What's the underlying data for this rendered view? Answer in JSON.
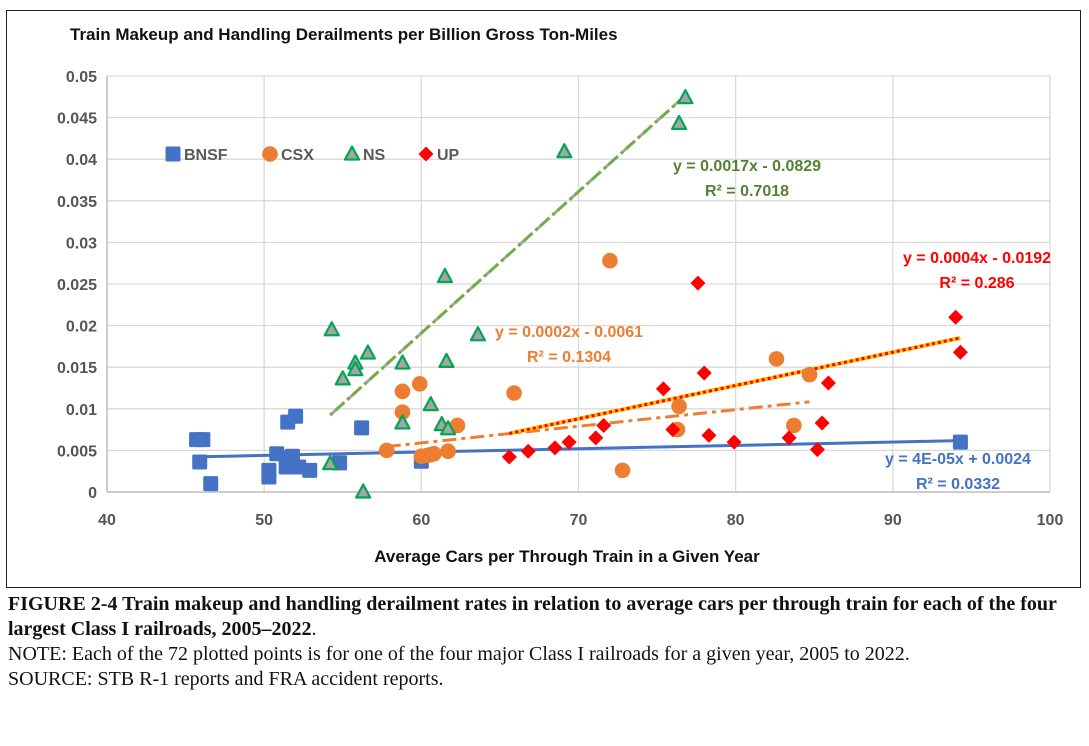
{
  "chart_data": {
    "type": "scatter",
    "title": "Train Makeup and Handling Derailments per Billion Gross Ton-Miles",
    "xlabel": "Average Cars per Through Train in a Given Year",
    "ylabel": "",
    "xlim": [
      40,
      100
    ],
    "ylim": [
      0,
      0.05
    ],
    "xticks": [
      40,
      50,
      60,
      70,
      80,
      90,
      100
    ],
    "xtick_labels": [
      "40",
      "50",
      "60",
      "70",
      "80",
      "90",
      "100"
    ],
    "yticks": [
      0,
      0.005,
      0.01,
      0.015,
      0.02,
      0.025,
      0.03,
      0.035,
      0.04,
      0.045,
      0.05
    ],
    "ytick_labels": [
      "0",
      "0.005",
      "0.01",
      "0.015",
      "0.02",
      "0.025",
      "0.03",
      "0.035",
      "0.04",
      "0.045",
      "0.05"
    ],
    "grid": true,
    "legend_position": "top-left",
    "series": [
      {
        "name": "BNSF",
        "marker": "square",
        "color": "#4472C4",
        "points": [
          [
            45.7,
            0.0063
          ],
          [
            46.1,
            0.0063
          ],
          [
            45.9,
            0.0036
          ],
          [
            46.6,
            0.001
          ],
          [
            50.3,
            0.0026
          ],
          [
            50.3,
            0.0018
          ],
          [
            50.8,
            0.0046
          ],
          [
            51.5,
            0.0041
          ],
          [
            51.4,
            0.003
          ],
          [
            52.2,
            0.003
          ],
          [
            52.9,
            0.0026
          ],
          [
            51.5,
            0.0084
          ],
          [
            52.0,
            0.0091
          ],
          [
            54.8,
            0.0035
          ],
          [
            56.2,
            0.0077
          ],
          [
            60.0,
            0.0037
          ],
          [
            94.3,
            0.006
          ],
          [
            51.8,
            0.0043
          ]
        ],
        "trendline": {
          "style": "solid",
          "color": "#4472C4",
          "x_range": [
            45.7,
            94.3
          ],
          "equation": "y = 4E-05x + 0.0024",
          "r2": "R² = 0.0332",
          "slope": 4e-05,
          "intercept": 0.0024
        }
      },
      {
        "name": "CSX",
        "marker": "circle",
        "color": "#ED7D31",
        "points": [
          [
            57.8,
            0.005
          ],
          [
            58.8,
            0.0121
          ],
          [
            58.8,
            0.0096
          ],
          [
            59.9,
            0.013
          ],
          [
            60.0,
            0.0043
          ],
          [
            60.4,
            0.0044
          ],
          [
            60.8,
            0.0046
          ],
          [
            61.7,
            0.0049
          ],
          [
            62.3,
            0.008
          ],
          [
            65.9,
            0.0119
          ],
          [
            72.0,
            0.0278
          ],
          [
            72.8,
            0.0026
          ],
          [
            76.3,
            0.0075
          ],
          [
            76.4,
            0.0103
          ],
          [
            82.6,
            0.016
          ],
          [
            83.7,
            0.008
          ],
          [
            84.7,
            0.0141
          ],
          [
            60.6,
            0.0045
          ]
        ],
        "trendline": {
          "style": "dash-dot",
          "color": "#ED7D31",
          "x_range": [
            57.8,
            84.7
          ],
          "equation": "y = 0.0002x - 0.0061",
          "r2": "R² = 0.1304",
          "slope": 0.0002,
          "intercept": -0.0061
        }
      },
      {
        "name": "NS",
        "marker": "triangle",
        "color": "#00A651",
        "fill": "#A5A5A5",
        "points": [
          [
            54.2,
            0.0034
          ],
          [
            54.3,
            0.0195
          ],
          [
            55.0,
            0.0136
          ],
          [
            55.8,
            0.0155
          ],
          [
            55.8,
            0.0147
          ],
          [
            56.3,
            0.0
          ],
          [
            56.6,
            0.0167
          ],
          [
            58.8,
            0.0155
          ],
          [
            58.8,
            0.0083
          ],
          [
            60.6,
            0.0105
          ],
          [
            61.3,
            0.0081
          ],
          [
            61.5,
            0.0259
          ],
          [
            61.6,
            0.0157
          ],
          [
            61.7,
            0.0076
          ],
          [
            63.6,
            0.0189
          ],
          [
            69.1,
            0.0409
          ],
          [
            76.4,
            0.0443
          ],
          [
            76.8,
            0.0474
          ]
        ],
        "trendline": {
          "style": "dash-dot",
          "color": "#70AD47",
          "x_range": [
            54.2,
            76.8
          ],
          "equation": "y = 0.0017x - 0.0829",
          "r2": "R² = 0.7018",
          "slope": 0.0017,
          "intercept": -0.0829
        }
      },
      {
        "name": "UP",
        "marker": "diamond",
        "color": "#FF0000",
        "points": [
          [
            65.6,
            0.0042
          ],
          [
            66.8,
            0.0049
          ],
          [
            68.5,
            0.0053
          ],
          [
            69.4,
            0.006
          ],
          [
            71.1,
            0.0065
          ],
          [
            71.6,
            0.008
          ],
          [
            75.4,
            0.0124
          ],
          [
            76.0,
            0.0075
          ],
          [
            77.6,
            0.0251
          ],
          [
            78.0,
            0.0143
          ],
          [
            78.3,
            0.0068
          ],
          [
            79.9,
            0.006
          ],
          [
            83.4,
            0.0065
          ],
          [
            85.2,
            0.0051
          ],
          [
            85.5,
            0.0083
          ],
          [
            85.9,
            0.0131
          ],
          [
            94.0,
            0.021
          ],
          [
            94.3,
            0.0168
          ]
        ],
        "trendline": {
          "style": "dotted-on-yellow",
          "color": "#FF0000",
          "x_range": [
            65.6,
            94.3
          ],
          "equation": "y = 0.0004x - 0.0192",
          "r2": "R² = 0.286",
          "slope": 0.0004,
          "intercept": -0.0192
        }
      }
    ]
  },
  "caption": {
    "figure_bold": "FIGURE 2-4 Train makeup and handling derailment rates in relation to average cars per through train for each of the four largest Class I railroads, 2005–2022",
    "figure_end": ".",
    "note": "NOTE: Each of the 72 plotted points is for one of the four major Class I railroads for a given year, 2005 to 2022.",
    "source": "SOURCE: STB R-1 reports and FRA accident reports."
  }
}
